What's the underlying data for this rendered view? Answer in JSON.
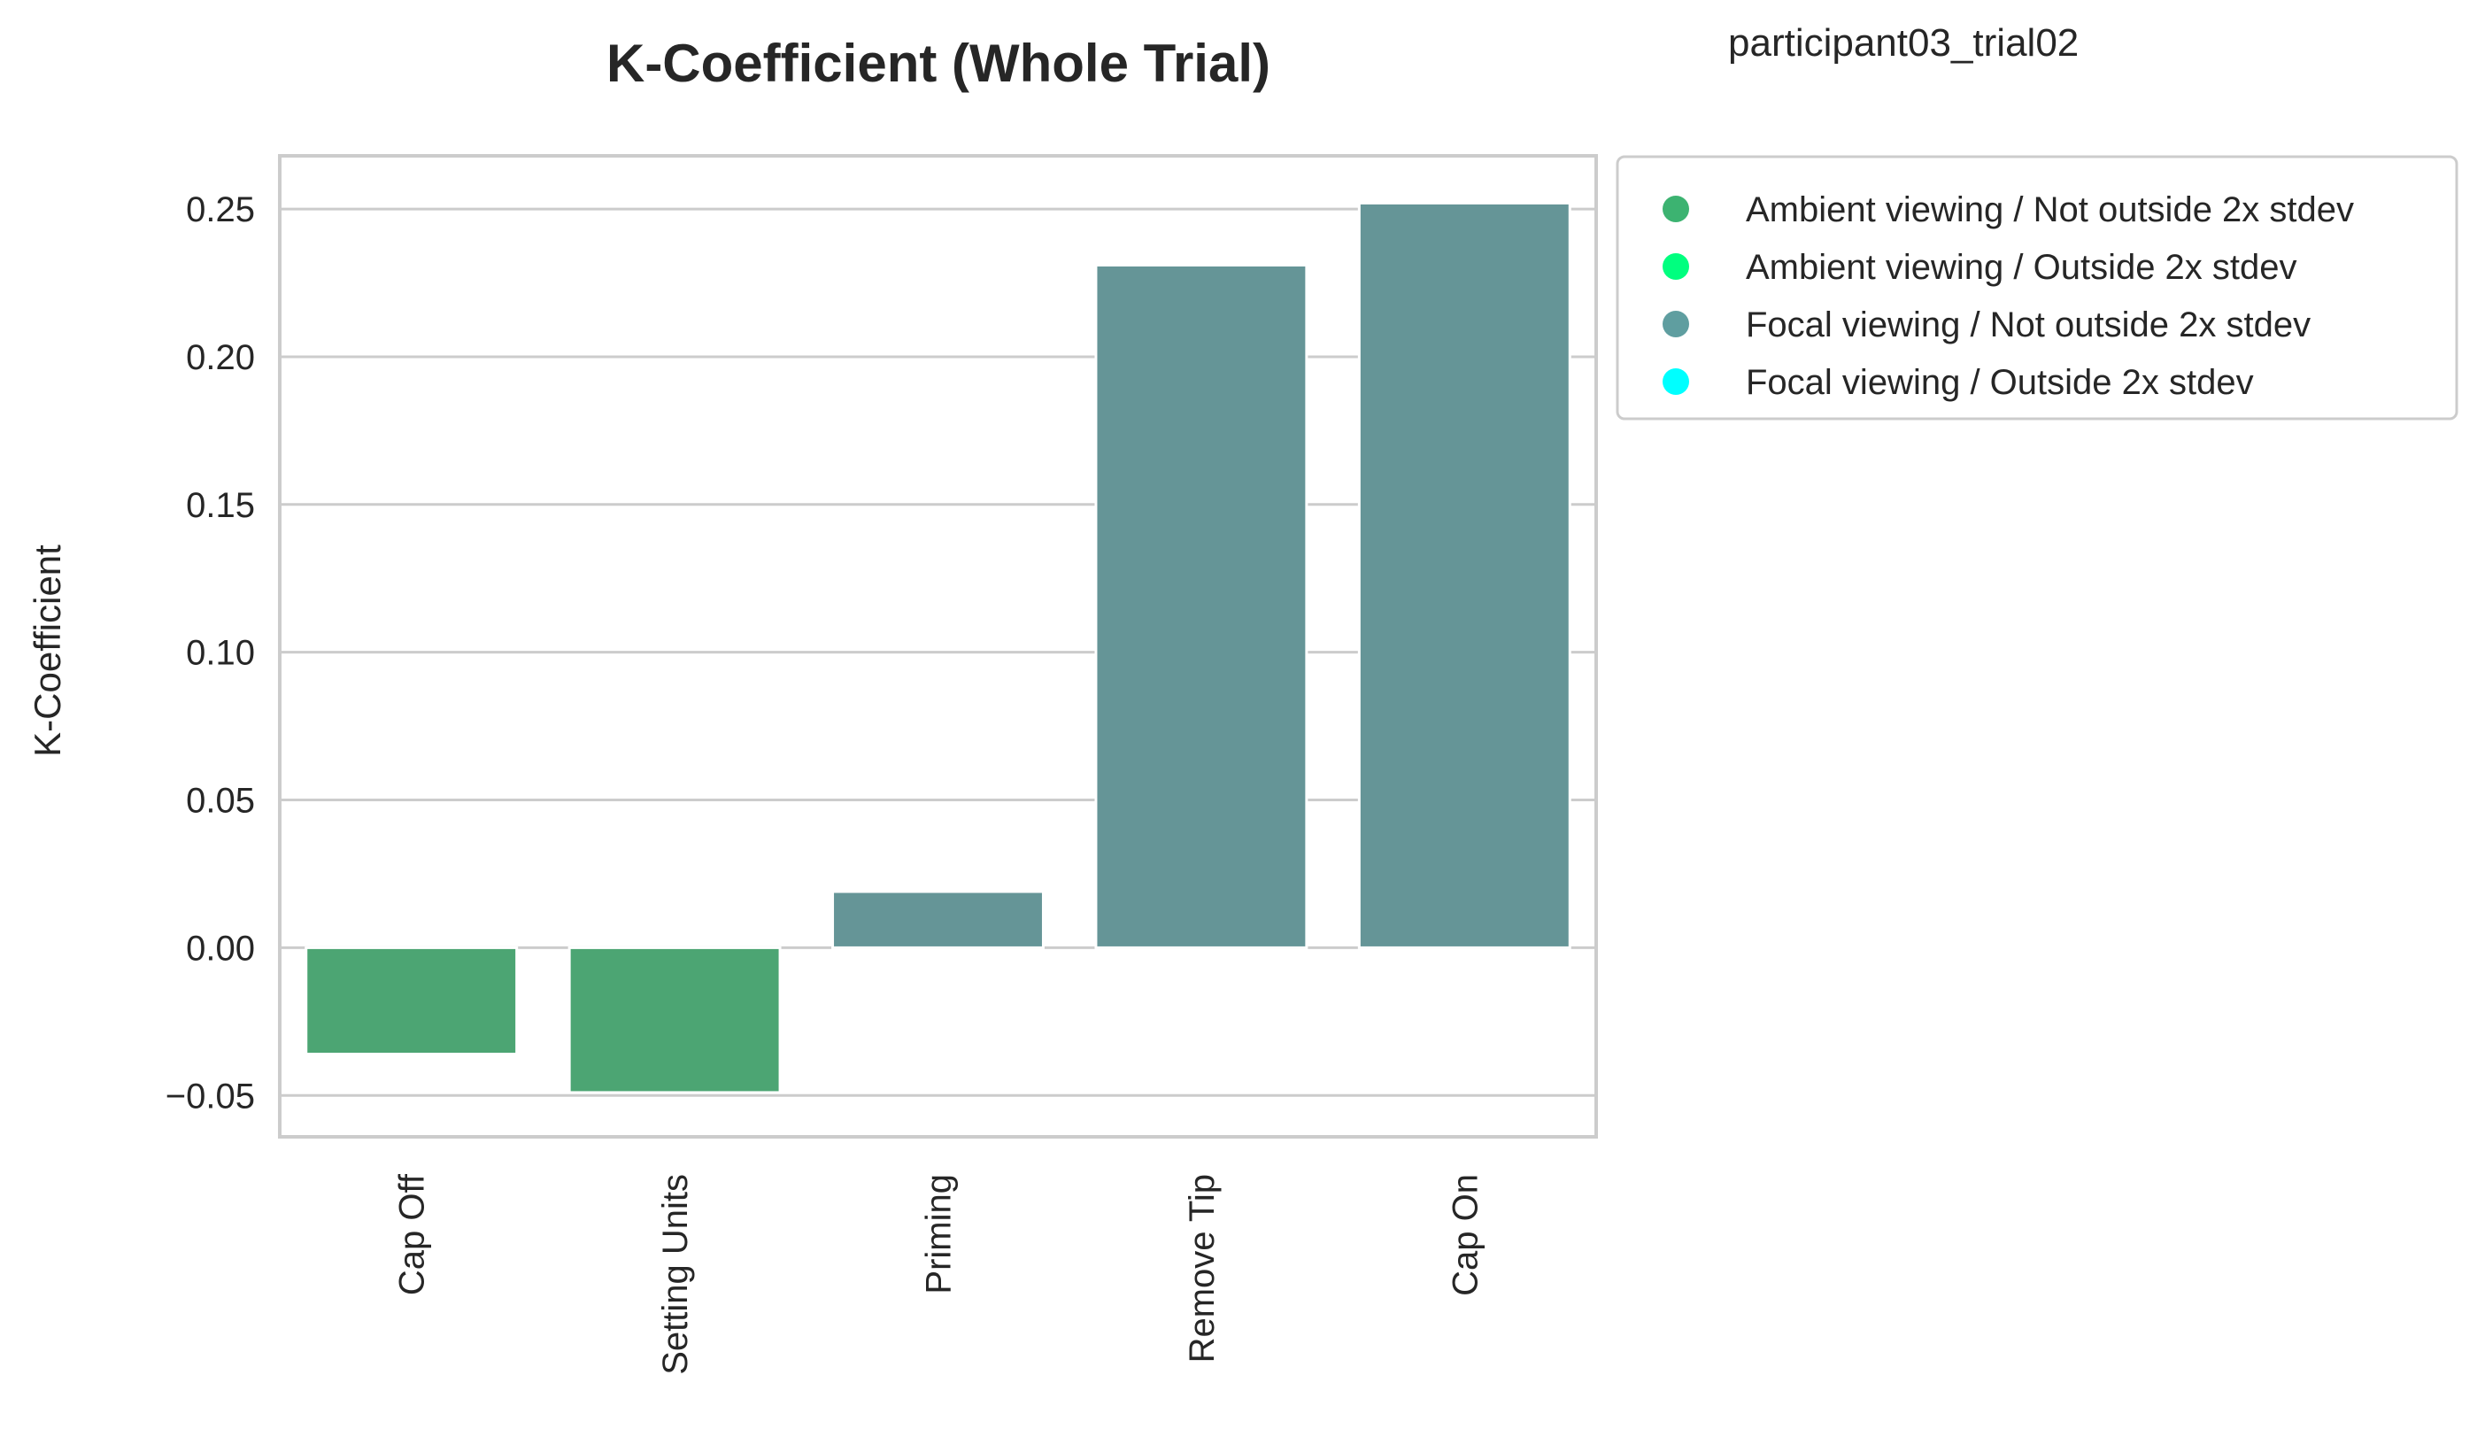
{
  "chart_data": {
    "type": "bar",
    "title": "K-Coefficient (Whole Trial)",
    "subtitle": "participant03_trial02",
    "xlabel": "",
    "ylabel": "K-Coefficient",
    "categories": [
      "Cap Off",
      "Setting Units",
      "Priming",
      "Remove Tip",
      "Cap On"
    ],
    "values": [
      -0.036,
      -0.049,
      0.019,
      0.231,
      0.252
    ],
    "bar_groups": [
      "Ambient viewing / Not outside 2x stdev",
      "Ambient viewing / Not outside 2x stdev",
      "Focal viewing / Not outside 2x stdev",
      "Focal viewing / Not outside 2x stdev",
      "Focal viewing / Not outside 2x stdev"
    ],
    "ylim": [
      -0.064,
      0.268
    ],
    "yticks": [
      -0.05,
      0.0,
      0.05,
      0.1,
      0.15,
      0.2,
      0.25
    ],
    "ytick_labels": [
      "−0.05",
      "0.00",
      "0.05",
      "0.10",
      "0.15",
      "0.20",
      "0.25"
    ],
    "grid": true,
    "legend_position": "outside-right-top",
    "legend": [
      {
        "label": "Ambient viewing / Not outside 2x stdev",
        "color": "#3cb371"
      },
      {
        "label": "Ambient viewing / Outside 2x stdev",
        "color": "#00ff7f"
      },
      {
        "label": "Focal viewing / Not outside 2x stdev",
        "color": "#5f9ea0"
      },
      {
        "label": "Focal viewing / Outside 2x stdev",
        "color": "#00ffff"
      }
    ],
    "bar_colors": {
      "Ambient viewing / Not outside 2x stdev": "#4ca573",
      "Focal viewing / Not outside 2x stdev": "#659597"
    }
  }
}
